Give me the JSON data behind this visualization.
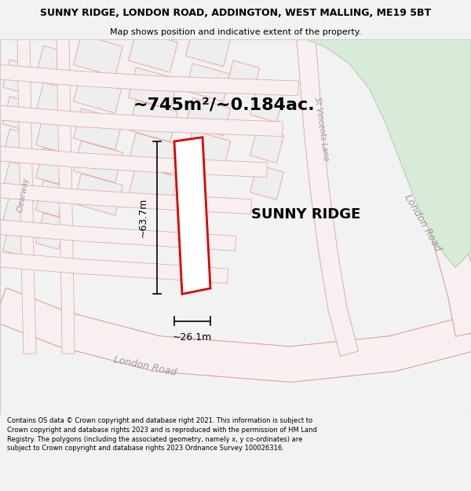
{
  "title_line1": "SUNNY RIDGE, LONDON ROAD, ADDINGTON, WEST MALLING, ME19 5BT",
  "title_line2": "Map shows position and indicative extent of the property.",
  "area_text": "~745m²/~0.184ac.",
  "property_label": "SUNNY RIDGE",
  "dim_height": "~63.7m",
  "dim_width": "~26.1m",
  "footer_text": "Contains OS data © Crown copyright and database right 2021. This information is subject to Crown copyright and database rights 2023 and is reproduced with the permission of HM Land Registry. The polygons (including the associated geometry, namely x, y co-ordinates) are subject to Crown copyright and database rights 2023 Ordnance Survey 100026316.",
  "bg_color": "#f2f2f2",
  "map_bg": "#ffffff",
  "red_plot_color": "#dd0000",
  "green_area_color": "#d8ead8",
  "road_color": "#f5c8c8",
  "building_fc": "#eeeeee",
  "building_ec": "#e8aaaa",
  "road_label_london_road_bottom": "London Road",
  "road_label_london_road_right": "London Road",
  "road_label_clearway": "Clearway",
  "road_label_st_vincents": "St Vincents Lane",
  "title_fontsize": 9,
  "subtitle_fontsize": 8,
  "area_fontsize": 16,
  "label_fontsize": 13,
  "dim_fontsize": 9,
  "road_label_fontsize": 9,
  "footer_fontsize": 6
}
